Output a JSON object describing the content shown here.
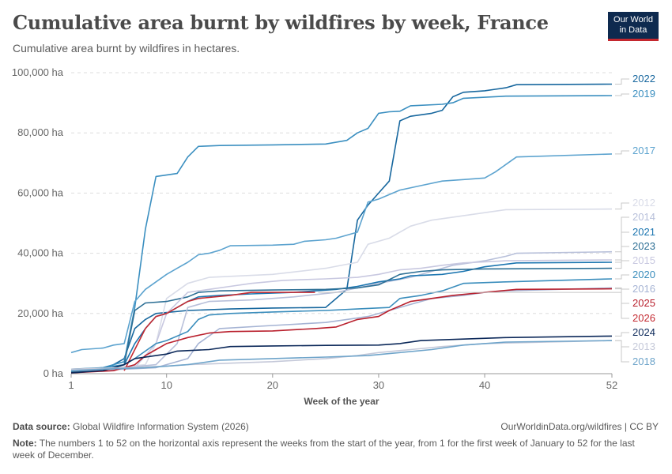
{
  "header": {
    "title": "Cumulative area burnt by wildfires by week, France",
    "subtitle": "Cumulative area burnt by wildfires in hectares.",
    "logo_line1": "Our World",
    "logo_line2": "in Data"
  },
  "footer": {
    "source_label": "Data source:",
    "source_text": "Global Wildfire Information System (2026)",
    "rights": "OurWorldinData.org/wildfires | CC BY",
    "note_label": "Note:",
    "note_text": "The numbers 1 to 52 on the horizontal axis represent the weeks from the start of the year, from 1 for the first week of January to 52 for the last week of December."
  },
  "chart_data": {
    "type": "line",
    "xlabel": "Week of the year",
    "ylabel": "",
    "xlim": [
      1,
      52
    ],
    "ylim": [
      0,
      100000
    ],
    "x_ticks": [
      1,
      10,
      20,
      30,
      40,
      52
    ],
    "x_tick_labels": [
      "1",
      "10",
      "20",
      "30",
      "40",
      "52"
    ],
    "y_ticks": [
      0,
      20000,
      40000,
      60000,
      80000,
      100000
    ],
    "y_tick_labels": [
      "0 ha",
      "20,000 ha",
      "40,000 ha",
      "60,000 ha",
      "80,000 ha",
      "100,000 ha"
    ],
    "grid": "horizontal dashed",
    "legend": "right, labels at line ends",
    "series": [
      {
        "name": "2022",
        "color": "#17679e",
        "points": [
          [
            1,
            500
          ],
          [
            4,
            1000
          ],
          [
            6,
            5000
          ],
          [
            7,
            15000
          ],
          [
            8,
            18000
          ],
          [
            9,
            20000
          ],
          [
            12,
            21000
          ],
          [
            16,
            21500
          ],
          [
            20,
            21800
          ],
          [
            25,
            22000
          ],
          [
            27,
            28000
          ],
          [
            28,
            51000
          ],
          [
            29,
            56000
          ],
          [
            30,
            60000
          ],
          [
            31,
            64000
          ],
          [
            32,
            84000
          ],
          [
            33,
            85500
          ],
          [
            35,
            86500
          ],
          [
            36,
            87500
          ],
          [
            37,
            92000
          ],
          [
            38,
            93500
          ],
          [
            40,
            94000
          ],
          [
            41,
            94500
          ],
          [
            42,
            95000
          ],
          [
            43,
            96000
          ],
          [
            52,
            96200
          ]
        ]
      },
      {
        "name": "2019",
        "color": "#3b8fc0",
        "points": [
          [
            1,
            1000
          ],
          [
            4,
            2000
          ],
          [
            6,
            4000
          ],
          [
            7,
            22000
          ],
          [
            8,
            48000
          ],
          [
            9,
            65500
          ],
          [
            11,
            66500
          ],
          [
            12,
            72000
          ],
          [
            13,
            75500
          ],
          [
            15,
            75800
          ],
          [
            20,
            76000
          ],
          [
            25,
            76300
          ],
          [
            27,
            77500
          ],
          [
            28,
            80000
          ],
          [
            29,
            81500
          ],
          [
            30,
            86500
          ],
          [
            31,
            87000
          ],
          [
            32,
            87200
          ],
          [
            33,
            89000
          ],
          [
            36,
            89500
          ],
          [
            37,
            90000
          ],
          [
            38,
            91500
          ],
          [
            42,
            92200
          ],
          [
            52,
            92400
          ]
        ]
      },
      {
        "name": "2017",
        "color": "#5ca3cf",
        "points": [
          [
            1,
            7000
          ],
          [
            2,
            8000
          ],
          [
            4,
            8500
          ],
          [
            5,
            9500
          ],
          [
            6,
            10000
          ],
          [
            7,
            24000
          ],
          [
            8,
            28000
          ],
          [
            10,
            33000
          ],
          [
            11,
            35000
          ],
          [
            12,
            37000
          ],
          [
            13,
            39500
          ],
          [
            14,
            40000
          ],
          [
            15,
            41000
          ],
          [
            16,
            42500
          ],
          [
            20,
            42700
          ],
          [
            22,
            43000
          ],
          [
            23,
            44000
          ],
          [
            25,
            44500
          ],
          [
            26,
            45000
          ],
          [
            28,
            47000
          ],
          [
            29,
            57000
          ],
          [
            30,
            58000
          ],
          [
            32,
            61000
          ],
          [
            34,
            62500
          ],
          [
            36,
            64000
          ],
          [
            38,
            64500
          ],
          [
            40,
            65000
          ],
          [
            41,
            67000
          ],
          [
            42,
            69500
          ],
          [
            43,
            72000
          ],
          [
            52,
            73000
          ]
        ]
      },
      {
        "name": "2012",
        "color": "#d9dce8",
        "points": [
          [
            1,
            1500
          ],
          [
            5,
            2000
          ],
          [
            8,
            3000
          ],
          [
            9,
            10000
          ],
          [
            10,
            25000
          ],
          [
            12,
            30000
          ],
          [
            14,
            32000
          ],
          [
            20,
            33000
          ],
          [
            25,
            35000
          ],
          [
            28,
            37000
          ],
          [
            29,
            43000
          ],
          [
            31,
            45000
          ],
          [
            33,
            49000
          ],
          [
            35,
            51000
          ],
          [
            37,
            52000
          ],
          [
            40,
            53500
          ],
          [
            42,
            54500
          ],
          [
            52,
            54700
          ]
        ]
      },
      {
        "name": "2014",
        "color": "#b8c0da",
        "points": [
          [
            1,
            1000
          ],
          [
            6,
            2000
          ],
          [
            9,
            3000
          ],
          [
            11,
            10000
          ],
          [
            12,
            22000
          ],
          [
            14,
            24000
          ],
          [
            18,
            24500
          ],
          [
            22,
            25500
          ],
          [
            26,
            27000
          ],
          [
            30,
            30000
          ],
          [
            33,
            32000
          ],
          [
            35,
            34000
          ],
          [
            37,
            36000
          ],
          [
            40,
            37500
          ],
          [
            42,
            39000
          ],
          [
            43,
            40000
          ],
          [
            52,
            40500
          ]
        ]
      },
      {
        "name": "2021",
        "color": "#1b75b0",
        "points": [
          [
            1,
            500
          ],
          [
            3,
            1000
          ],
          [
            5,
            2000
          ],
          [
            6,
            3000
          ],
          [
            7,
            10000
          ],
          [
            8,
            15000
          ],
          [
            9,
            19000
          ],
          [
            10,
            20000
          ],
          [
            12,
            24000
          ],
          [
            13,
            25500
          ],
          [
            15,
            26000
          ],
          [
            18,
            26500
          ],
          [
            22,
            27000
          ],
          [
            26,
            28000
          ],
          [
            28,
            29000
          ],
          [
            30,
            30500
          ],
          [
            32,
            31500
          ],
          [
            33,
            32500
          ],
          [
            36,
            33000
          ],
          [
            38,
            34000
          ],
          [
            40,
            35500
          ],
          [
            43,
            36800
          ],
          [
            52,
            37000
          ]
        ]
      },
      {
        "name": "2023",
        "color": "#2d6f95",
        "points": [
          [
            1,
            500
          ],
          [
            4,
            1000
          ],
          [
            6,
            3000
          ],
          [
            7,
            21000
          ],
          [
            8,
            23500
          ],
          [
            10,
            24000
          ],
          [
            12,
            25500
          ],
          [
            13,
            27000
          ],
          [
            15,
            27500
          ],
          [
            20,
            27800
          ],
          [
            25,
            28000
          ],
          [
            28,
            28500
          ],
          [
            30,
            29500
          ],
          [
            32,
            33000
          ],
          [
            34,
            34000
          ],
          [
            36,
            34500
          ],
          [
            40,
            34800
          ],
          [
            52,
            35000
          ]
        ]
      },
      {
        "name": "2015",
        "color": "#c8c8e0",
        "points": [
          [
            1,
            1000
          ],
          [
            7,
            2000
          ],
          [
            9,
            10000
          ],
          [
            10,
            20000
          ],
          [
            12,
            27000
          ],
          [
            14,
            28000
          ],
          [
            16,
            29000
          ],
          [
            18,
            30000
          ],
          [
            21,
            31000
          ],
          [
            25,
            31500
          ],
          [
            28,
            32000
          ],
          [
            30,
            33000
          ],
          [
            32,
            34500
          ],
          [
            34,
            35000
          ],
          [
            36,
            36000
          ],
          [
            38,
            36800
          ],
          [
            42,
            37500
          ],
          [
            52,
            37800
          ]
        ]
      },
      {
        "name": "2020",
        "color": "#3a8dbc",
        "points": [
          [
            1,
            1500
          ],
          [
            4,
            2000
          ],
          [
            6,
            3000
          ],
          [
            7,
            5000
          ],
          [
            9,
            10000
          ],
          [
            10,
            11000
          ],
          [
            12,
            14000
          ],
          [
            13,
            18000
          ],
          [
            14,
            19500
          ],
          [
            16,
            20000
          ],
          [
            20,
            20500
          ],
          [
            25,
            21000
          ],
          [
            28,
            21500
          ],
          [
            31,
            22000
          ],
          [
            32,
            25000
          ],
          [
            34,
            26000
          ],
          [
            36,
            27500
          ],
          [
            38,
            30000
          ],
          [
            42,
            30500
          ],
          [
            52,
            31500
          ]
        ]
      },
      {
        "name": "2016",
        "color": "#a6b4d4",
        "points": [
          [
            1,
            1000
          ],
          [
            6,
            1500
          ],
          [
            9,
            2000
          ],
          [
            12,
            5000
          ],
          [
            13,
            10000
          ],
          [
            15,
            15000
          ],
          [
            20,
            16000
          ],
          [
            25,
            17000
          ],
          [
            27,
            18000
          ],
          [
            29,
            19000
          ],
          [
            31,
            21000
          ],
          [
            33,
            23000
          ],
          [
            35,
            25000
          ],
          [
            38,
            26000
          ],
          [
            40,
            27000
          ],
          [
            42,
            27500
          ],
          [
            52,
            28500
          ]
        ]
      },
      {
        "name": "2025",
        "color": "#b9202d",
        "points": [
          [
            1,
            300
          ],
          [
            5,
            1000
          ],
          [
            7,
            3000
          ],
          [
            8,
            6000
          ],
          [
            9,
            8000
          ],
          [
            10,
            10000
          ],
          [
            11,
            11000
          ],
          [
            12,
            12000
          ],
          [
            14,
            13500
          ],
          [
            16,
            14000
          ],
          [
            20,
            14200
          ],
          [
            24,
            15000
          ],
          [
            26,
            15500
          ],
          [
            28,
            18000
          ],
          [
            30,
            19000
          ],
          [
            31,
            21000
          ],
          [
            33,
            24000
          ],
          [
            35,
            25000
          ],
          [
            37,
            26000
          ],
          [
            40,
            27000
          ],
          [
            43,
            28000
          ],
          [
            52,
            28200
          ]
        ]
      },
      {
        "name": "2026",
        "color": "#c42b32",
        "points": [
          [
            6,
            1000
          ],
          [
            7,
            8000
          ],
          [
            8,
            15000
          ],
          [
            8.5,
            17000
          ],
          [
            9,
            19000
          ],
          [
            10,
            20000
          ],
          [
            11,
            22000
          ],
          [
            12,
            24000
          ],
          [
            13,
            25000
          ],
          [
            16,
            26000
          ],
          [
            18,
            27000
          ],
          [
            24,
            27000
          ]
        ]
      },
      {
        "name": "2024",
        "color": "#0b2859",
        "points": [
          [
            1,
            300
          ],
          [
            4,
            1000
          ],
          [
            6,
            3000
          ],
          [
            7,
            5000
          ],
          [
            9,
            6000
          ],
          [
            10,
            6500
          ],
          [
            11,
            7500
          ],
          [
            14,
            8000
          ],
          [
            16,
            9000
          ],
          [
            20,
            9200
          ],
          [
            25,
            9400
          ],
          [
            30,
            9500
          ],
          [
            32,
            10000
          ],
          [
            34,
            11000
          ],
          [
            38,
            11500
          ],
          [
            42,
            12000
          ],
          [
            52,
            12500
          ]
        ]
      },
      {
        "name": "2013",
        "color": "#c5c9d9",
        "points": [
          [
            1,
            1500
          ],
          [
            6,
            2000
          ],
          [
            10,
            2500
          ],
          [
            12,
            3000
          ],
          [
            16,
            3500
          ],
          [
            20,
            4000
          ],
          [
            25,
            5000
          ],
          [
            28,
            6000
          ],
          [
            30,
            7000
          ],
          [
            33,
            8000
          ],
          [
            36,
            9000
          ],
          [
            40,
            10000
          ],
          [
            52,
            11000
          ]
        ]
      },
      {
        "name": "2018",
        "color": "#6ea4ca",
        "points": [
          [
            1,
            1000
          ],
          [
            4,
            1500
          ],
          [
            8,
            2000
          ],
          [
            12,
            3000
          ],
          [
            15,
            4500
          ],
          [
            20,
            5000
          ],
          [
            25,
            5500
          ],
          [
            29,
            6000
          ],
          [
            32,
            7000
          ],
          [
            35,
            8000
          ],
          [
            38,
            9500
          ],
          [
            42,
            10500
          ],
          [
            52,
            11000
          ]
        ]
      }
    ]
  }
}
